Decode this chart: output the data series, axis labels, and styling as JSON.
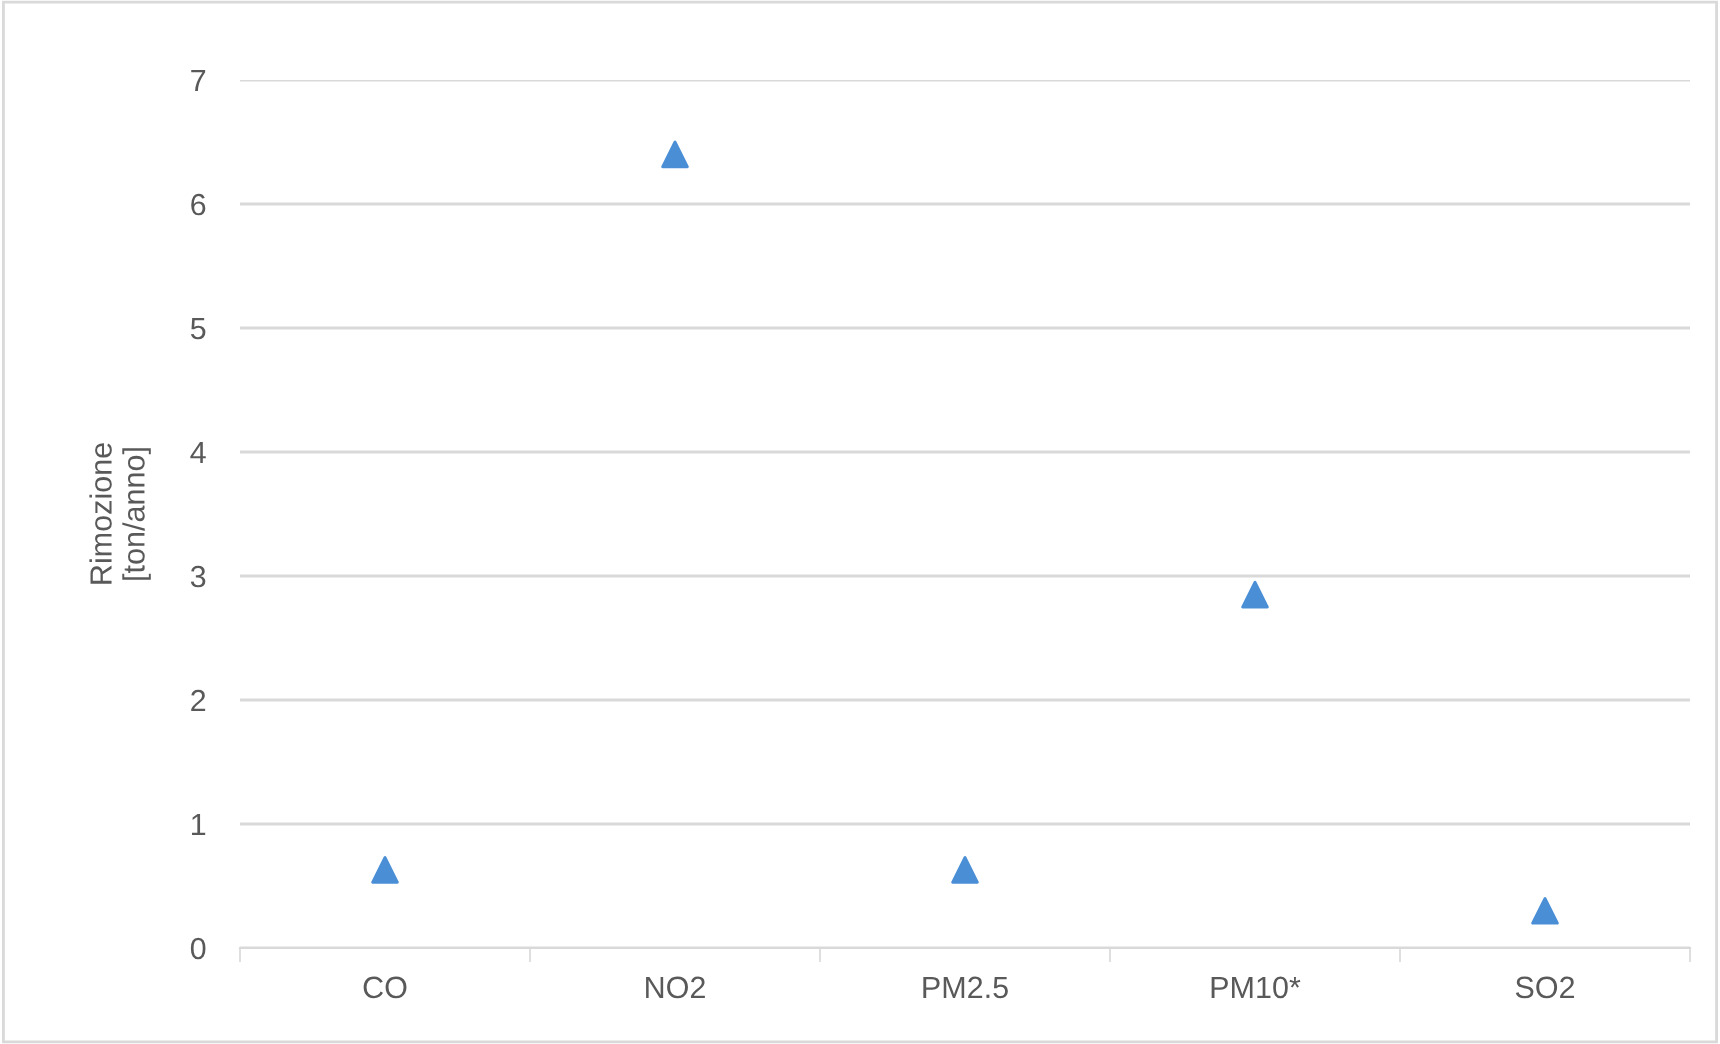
{
  "chart_data": {
    "type": "scatter",
    "ylabel": "Rimozione\n[ton/anno]",
    "categories": [
      "CO",
      "NO2",
      "PM2.5",
      "PM10*",
      "SO2"
    ],
    "series": [
      {
        "color": "#4a8fd6",
        "values": [
          0.63,
          6.4,
          0.63,
          2.85,
          0.3
        ]
      }
    ],
    "ylim": [
      0,
      7
    ],
    "yticks": [
      0,
      1,
      2,
      3,
      4,
      5,
      6,
      7
    ],
    "grid": "y",
    "marker": "triangle",
    "legend": false
  }
}
